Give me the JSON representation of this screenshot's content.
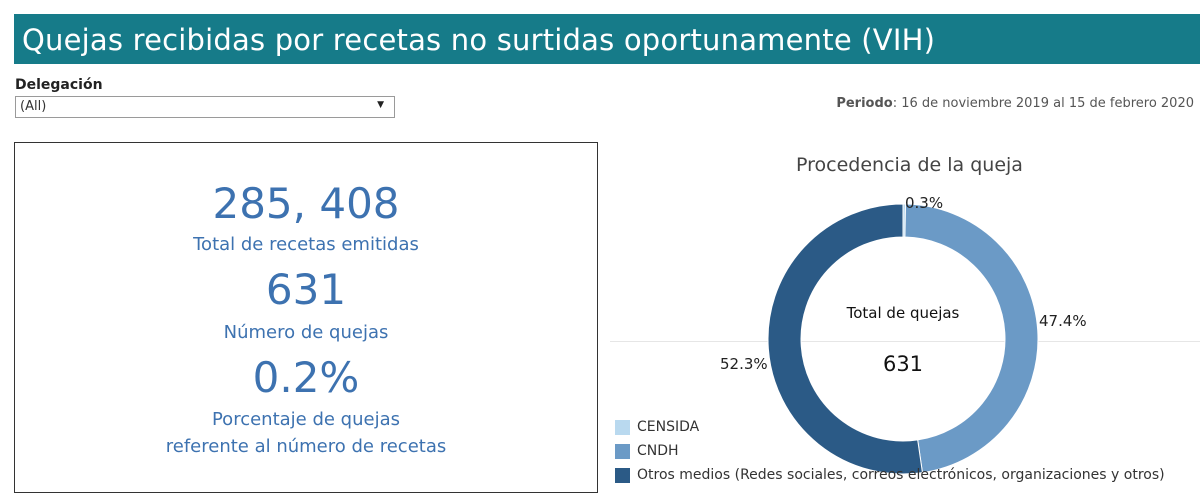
{
  "header": {
    "title": "Quejas recibidas por recetas no surtidas oportunamente (VIH)"
  },
  "filter": {
    "label": "Delegación",
    "value": "(All)"
  },
  "period": {
    "label": "Periodo",
    "value": ": 16 de noviembre 2019 al 15 de febrero 2020"
  },
  "kpis": [
    {
      "value": "285, 408",
      "label": "Total de recetas emitidas"
    },
    {
      "value": "631",
      "label": "Número de quejas"
    },
    {
      "value": "0.2%",
      "label_line1": "Porcentaje de quejas",
      "label_line2": "referente al número de recetas"
    }
  ],
  "chart_data": {
    "type": "pie",
    "title": "Procedencia de la queja",
    "center_label": "Total de quejas",
    "center_value": "631",
    "categories": [
      "CENSIDA",
      "CNDH",
      "Otros medios (Redes sociales, correos electrónicos, organizaciones y otros)"
    ],
    "values": [
      0.3,
      47.4,
      52.3
    ],
    "value_labels": [
      "0.3%",
      "47.4%",
      "52.3%"
    ],
    "colors": [
      "#b9d9ef",
      "#6b9ac6",
      "#2b5a86"
    ],
    "legend_position": "bottom-left"
  },
  "colors": {
    "header": "#167b89",
    "kpi_text": "#3d72b0"
  }
}
